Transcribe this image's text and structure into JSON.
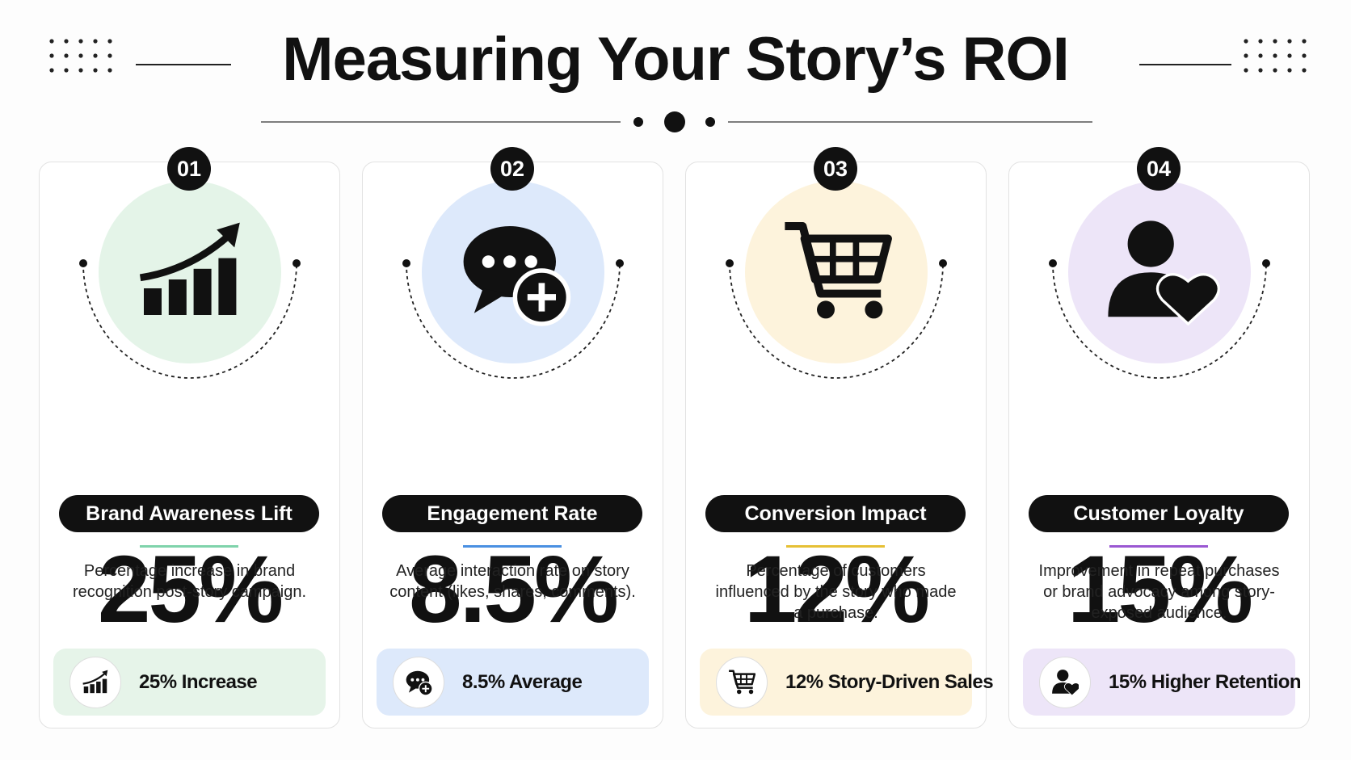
{
  "header": {
    "title": "Measuring Your Story’s ROI"
  },
  "cards": [
    {
      "number": "01",
      "metric": "25%",
      "label": "Brand Awareness Lift",
      "description": "Percentage increase in brand recognition post-story campaign.",
      "badge": "25% Increase"
    },
    {
      "number": "02",
      "metric": "8.5%",
      "label": "Engagement Rate",
      "description": "Average interaction rate on story content (likes, shares, comments).",
      "badge": "8.5% Average"
    },
    {
      "number": "03",
      "metric": "12%",
      "label": "Conversion Impact",
      "description": "Percentage of customers influenced by the story who made a purchase.",
      "badge": "12% Story-Driven Sales"
    },
    {
      "number": "04",
      "metric": "15%",
      "label": "Customer Loyalty",
      "description": "Improvement in repeat purchases or brand advocacy among story-exposed audience.",
      "badge": "15% Higher Retention"
    }
  ]
}
